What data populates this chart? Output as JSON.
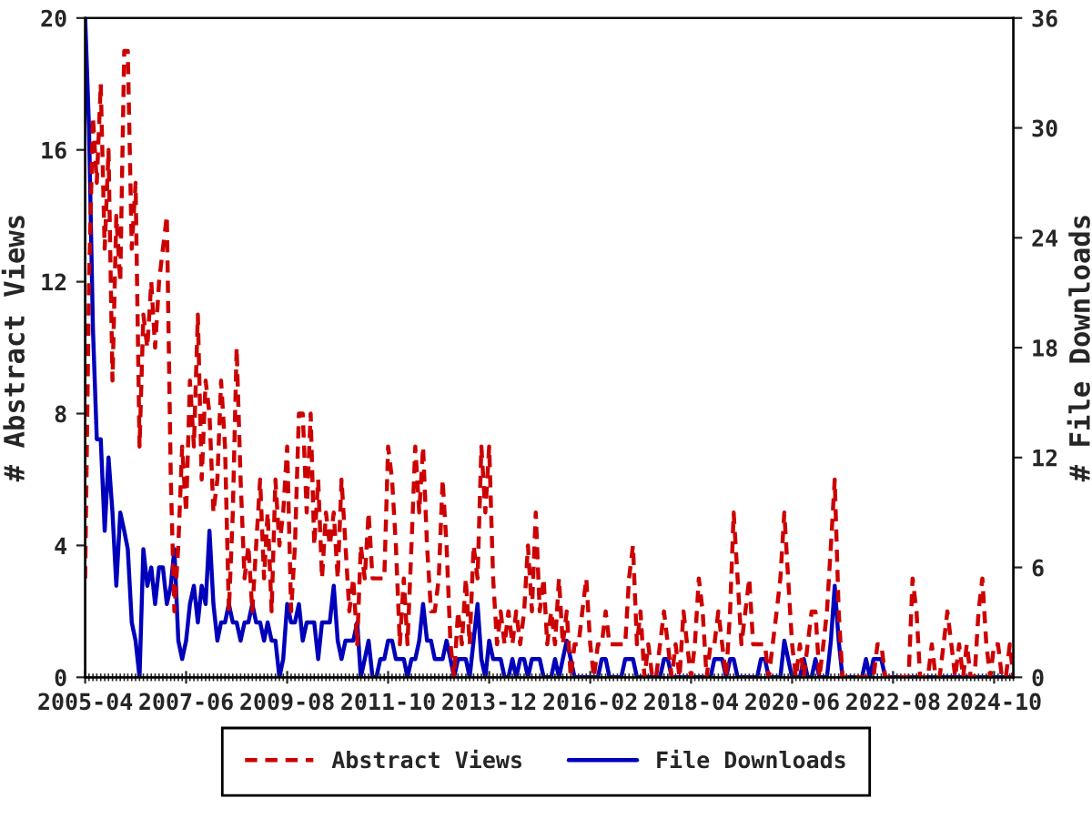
{
  "chart_data": {
    "type": "line",
    "x": [
      "2005-04",
      "2005-05",
      "2005-06",
      "2005-07",
      "2005-08",
      "2005-09",
      "2005-10",
      "2005-11",
      "2005-12",
      "2006-01",
      "2006-02",
      "2006-03",
      "2006-04",
      "2006-05",
      "2006-06",
      "2006-07",
      "2006-08",
      "2006-09",
      "2006-10",
      "2006-11",
      "2006-12",
      "2007-01",
      "2007-02",
      "2007-03",
      "2007-04",
      "2007-05",
      "2007-06",
      "2007-07",
      "2007-08",
      "2007-09",
      "2007-10",
      "2007-11",
      "2007-12",
      "2008-01",
      "2008-02",
      "2008-03",
      "2008-04",
      "2008-05",
      "2008-06",
      "2008-07",
      "2008-08",
      "2008-09",
      "2008-10",
      "2008-11",
      "2008-12",
      "2009-01",
      "2009-02",
      "2009-03",
      "2009-04",
      "2009-05",
      "2009-06",
      "2009-07",
      "2009-08",
      "2009-09",
      "2009-10",
      "2009-11",
      "2009-12",
      "2010-01",
      "2010-02",
      "2010-03",
      "2010-04",
      "2010-05",
      "2010-06",
      "2010-07",
      "2010-08",
      "2010-09",
      "2010-10",
      "2010-11",
      "2010-12",
      "2011-01",
      "2011-02",
      "2011-03",
      "2011-04",
      "2011-05",
      "2011-06",
      "2011-07",
      "2011-08",
      "2011-09",
      "2011-10",
      "2011-11",
      "2011-12",
      "2012-01",
      "2012-02",
      "2012-03",
      "2012-04",
      "2012-05",
      "2012-06",
      "2012-07",
      "2012-08",
      "2012-09",
      "2012-10",
      "2012-11",
      "2012-12",
      "2013-01",
      "2013-02",
      "2013-03",
      "2013-04",
      "2013-05",
      "2013-06",
      "2013-07",
      "2013-08",
      "2013-09",
      "2013-10",
      "2013-11",
      "2013-12",
      "2014-01",
      "2014-02",
      "2014-03",
      "2014-04",
      "2014-05",
      "2014-06",
      "2014-07",
      "2014-08",
      "2014-09",
      "2014-10",
      "2014-11",
      "2014-12",
      "2015-01",
      "2015-02",
      "2015-03",
      "2015-04",
      "2015-05",
      "2015-06",
      "2015-07",
      "2015-08",
      "2015-09",
      "2015-10",
      "2015-11",
      "2015-12",
      "2016-01",
      "2016-02",
      "2016-03",
      "2016-04",
      "2016-05",
      "2016-06",
      "2016-07",
      "2016-08",
      "2016-09",
      "2016-10",
      "2016-11",
      "2016-12",
      "2017-01",
      "2017-02",
      "2017-03",
      "2017-04",
      "2017-05",
      "2017-06",
      "2017-07",
      "2017-08",
      "2017-09",
      "2017-10",
      "2017-11",
      "2017-12",
      "2018-01",
      "2018-02",
      "2018-03",
      "2018-04",
      "2018-05",
      "2018-06",
      "2018-07",
      "2018-08",
      "2018-09",
      "2018-10",
      "2018-11",
      "2018-12",
      "2019-01",
      "2019-02",
      "2019-03",
      "2019-04",
      "2019-05",
      "2019-06",
      "2019-07",
      "2019-08",
      "2019-09",
      "2019-10",
      "2019-11",
      "2019-12",
      "2020-01",
      "2020-02",
      "2020-03",
      "2020-04",
      "2020-05",
      "2020-06",
      "2020-07",
      "2020-08",
      "2020-09",
      "2020-10",
      "2020-11",
      "2020-12",
      "2021-01",
      "2021-02",
      "2021-03",
      "2021-04",
      "2021-05",
      "2021-06",
      "2021-07",
      "2021-08",
      "2021-09",
      "2021-10",
      "2021-11",
      "2021-12",
      "2022-01",
      "2022-02",
      "2022-03",
      "2022-04",
      "2022-05",
      "2022-06",
      "2022-07",
      "2022-08",
      "2022-09",
      "2022-10",
      "2022-11",
      "2022-12",
      "2023-01",
      "2023-02",
      "2023-03",
      "2023-04",
      "2023-05",
      "2023-06",
      "2023-07",
      "2023-08",
      "2023-09",
      "2023-10",
      "2023-11",
      "2023-12",
      "2024-01",
      "2024-02",
      "2024-03",
      "2024-04",
      "2024-05",
      "2024-06",
      "2024-07",
      "2024-08",
      "2024-09",
      "2024-10",
      "2024-11",
      "2024-12",
      "2025-01",
      "2025-02",
      "2025-03"
    ],
    "series": [
      {
        "name": "Abstract Views",
        "color": "#cc0000",
        "line_style": "dashed",
        "values": [
          3,
          12,
          17,
          15,
          18,
          13,
          16,
          9,
          14,
          12,
          19,
          19,
          13,
          15,
          7,
          11,
          10,
          12,
          10,
          12,
          13,
          14,
          6,
          2,
          4,
          7,
          5,
          9,
          7,
          11,
          6,
          9,
          8,
          5,
          6,
          9,
          7,
          2,
          5,
          10,
          6,
          3,
          4,
          2,
          4,
          6,
          3,
          5,
          2,
          6,
          4,
          5,
          7,
          2,
          4,
          8,
          8,
          5,
          8,
          4,
          6,
          3,
          5,
          4,
          5,
          3,
          6,
          4,
          2,
          3,
          1,
          4,
          3,
          5,
          3,
          3,
          3,
          3,
          7,
          6,
          4,
          1,
          3,
          1,
          4,
          7,
          5,
          7,
          4,
          2,
          2,
          3,
          6,
          4,
          1,
          0,
          2,
          1,
          3,
          1,
          4,
          3,
          7,
          5,
          7,
          3,
          1,
          2,
          1,
          2,
          1,
          2,
          1,
          2,
          4,
          2,
          5,
          2,
          3,
          1,
          2,
          1,
          3,
          1,
          2,
          0,
          1,
          1,
          2,
          3,
          1,
          0,
          1,
          1,
          2,
          1,
          1,
          1,
          1,
          1,
          3,
          4,
          1,
          2,
          0,
          1,
          0,
          0,
          1,
          2,
          1,
          0,
          1,
          0,
          2,
          1,
          0,
          1,
          3,
          2,
          0,
          1,
          1,
          2,
          1,
          0,
          2,
          5,
          3,
          1,
          2,
          3,
          1,
          1,
          1,
          1,
          0,
          1,
          2,
          3,
          5,
          3,
          1,
          0,
          1,
          0,
          1,
          2,
          2,
          0,
          1,
          2,
          4,
          6,
          2,
          0,
          0,
          0,
          0,
          0,
          0,
          0,
          0,
          0,
          1,
          1,
          0,
          0,
          0,
          0,
          0,
          0,
          0,
          3,
          2,
          0,
          0,
          0,
          1,
          0,
          0,
          1,
          2,
          1,
          0,
          1,
          0,
          1,
          0,
          0,
          2,
          3,
          1,
          0,
          1,
          1,
          0,
          0,
          1,
          0
        ]
      },
      {
        "name": "File Downloads",
        "color": "#0000bb",
        "line_style": "solid",
        "axis": "y2",
        "values": [
          36,
          30,
          19,
          13,
          13,
          8,
          12,
          9,
          5,
          9,
          8,
          7,
          3,
          2,
          0,
          7,
          5,
          6,
          4,
          6,
          6,
          4,
          5,
          7,
          2,
          1,
          2,
          4,
          5,
          3,
          5,
          4,
          8,
          4,
          2,
          3,
          3,
          4,
          3,
          3,
          2,
          3,
          3,
          4,
          3,
          3,
          2,
          3,
          2,
          2,
          0,
          1,
          4,
          3,
          3,
          4,
          2,
          3,
          3,
          3,
          1,
          3,
          3,
          3,
          5,
          2,
          1,
          2,
          2,
          2,
          3,
          0,
          1,
          2,
          0,
          0,
          1,
          1,
          2,
          2,
          1,
          1,
          1,
          0,
          1,
          1,
          2,
          4,
          2,
          2,
          1,
          1,
          1,
          2,
          1,
          0,
          1,
          1,
          1,
          0,
          2,
          4,
          1,
          0,
          2,
          1,
          1,
          1,
          0,
          0,
          1,
          0,
          1,
          1,
          0,
          1,
          1,
          1,
          0,
          0,
          0,
          1,
          0,
          1,
          2,
          1,
          0,
          0,
          0,
          0,
          0,
          0,
          0,
          1,
          1,
          0,
          0,
          0,
          0,
          1,
          1,
          1,
          0,
          0,
          0,
          0,
          0,
          0,
          0,
          1,
          1,
          0,
          0,
          0,
          0,
          0,
          0,
          0,
          0,
          0,
          0,
          0,
          1,
          1,
          1,
          0,
          1,
          1,
          0,
          0,
          0,
          0,
          0,
          0,
          1,
          1,
          0,
          0,
          0,
          0,
          2,
          1,
          0,
          0,
          0,
          1,
          0,
          0,
          1,
          0,
          0,
          0,
          2,
          5,
          2,
          0,
          0,
          0,
          0,
          0,
          0,
          1,
          0,
          1,
          1,
          1,
          0,
          0,
          0,
          0,
          0,
          0,
          0,
          0,
          0,
          0,
          0,
          0,
          0,
          0,
          0,
          0,
          0,
          0,
          0,
          0,
          0,
          0,
          0,
          0,
          0,
          0,
          0,
          0,
          0,
          0,
          0,
          0,
          0,
          0
        ]
      }
    ],
    "ylabel": "# Abstract Views",
    "y2label": "# File Downloads",
    "xlim": [
      "2005-04",
      "2025-03"
    ],
    "xticks": [
      "2005-04",
      "2007-06",
      "2009-08",
      "2011-10",
      "2013-12",
      "2016-02",
      "2018-04",
      "2020-06",
      "2022-08",
      "2024-10"
    ],
    "ylim": [
      0,
      20
    ],
    "yticks": [
      0,
      4,
      8,
      12,
      16,
      20
    ],
    "y2lim": [
      0,
      36
    ],
    "y2ticks": [
      0,
      6,
      12,
      18,
      24,
      30,
      36
    ],
    "legend": "bottom",
    "grid": false
  }
}
